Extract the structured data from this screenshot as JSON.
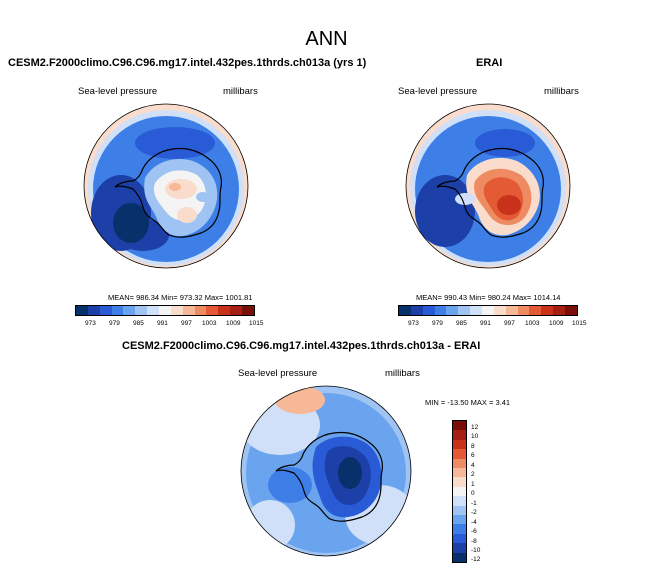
{
  "title": "ANN",
  "palette_abs": [
    "#08306b",
    "#1c3fa8",
    "#2a5bd7",
    "#3d7fe6",
    "#6aa3ee",
    "#9fc4f4",
    "#cfe0f8",
    "#f4f4f4",
    "#f9dccb",
    "#f6b896",
    "#ef8b62",
    "#e35a34",
    "#c8321a",
    "#a51f12",
    "#7a0f0a"
  ],
  "palette_diff": [
    "#08306b",
    "#1c3fa8",
    "#2a5bd7",
    "#3d7fe6",
    "#6aa3ee",
    "#9fc4f4",
    "#cfe0f8",
    "#f4f4f4",
    "#f9dccb",
    "#f6b896",
    "#ef8b62",
    "#e35a34",
    "#c8321a",
    "#a51f12",
    "#7a0f0a"
  ],
  "panels": {
    "model": {
      "title": "CESM2.F2000climo.C96.C96.mg17.intel.432pes.1thrds.ch013a (yrs 1)",
      "left_label": "Sea-level pressure",
      "right_label": "millibars",
      "stats": "MEAN= 986.34  Min= 973.32  Max= 1001.81"
    },
    "obs": {
      "title": "ERAI",
      "left_label": "Sea-level pressure",
      "right_label": "millibars",
      "stats": "MEAN= 990.43  Min= 980.24  Max= 1014.14"
    },
    "diff": {
      "title": "CESM2.F2000climo.C96.C96.mg17.intel.432pes.1thrds.ch013a - ERAI",
      "left_label": "Sea-level pressure",
      "right_label": "millibars",
      "stats": "MIN = -13.50 MAX =   3.41"
    }
  },
  "chart_data": [
    {
      "type": "heatmap",
      "projection": "south-polar stereographic",
      "title": "CESM2.F2000climo.C96.C96.mg17.intel.432pes.1thrds.ch013a (yrs 1)",
      "variable": "Sea-level pressure",
      "units": "millibars",
      "mean": 986.34,
      "min": 973.32,
      "max": 1001.81,
      "colorbar_ticks": [
        "973",
        "979",
        "985",
        "991",
        "997",
        "1003",
        "1009",
        "1015"
      ]
    },
    {
      "type": "heatmap",
      "projection": "south-polar stereographic",
      "title": "ERAI",
      "variable": "Sea-level pressure",
      "units": "millibars",
      "mean": 990.43,
      "min": 980.24,
      "max": 1014.14,
      "colorbar_ticks": [
        "973",
        "979",
        "985",
        "991",
        "997",
        "1003",
        "1009",
        "1015"
      ]
    },
    {
      "type": "heatmap",
      "projection": "south-polar stereographic",
      "title": "CESM2.F2000climo.C96.C96.mg17.intel.432pes.1thrds.ch013a - ERAI",
      "variable": "Sea-level pressure",
      "units": "millibars",
      "min": -13.5,
      "max": 3.41,
      "colorbar_ticks": [
        "12",
        "10",
        "8",
        "6",
        "4",
        "2",
        "1",
        "0",
        "-1",
        "-2",
        "-4",
        "-6",
        "-8",
        "-10",
        "-12"
      ]
    }
  ]
}
